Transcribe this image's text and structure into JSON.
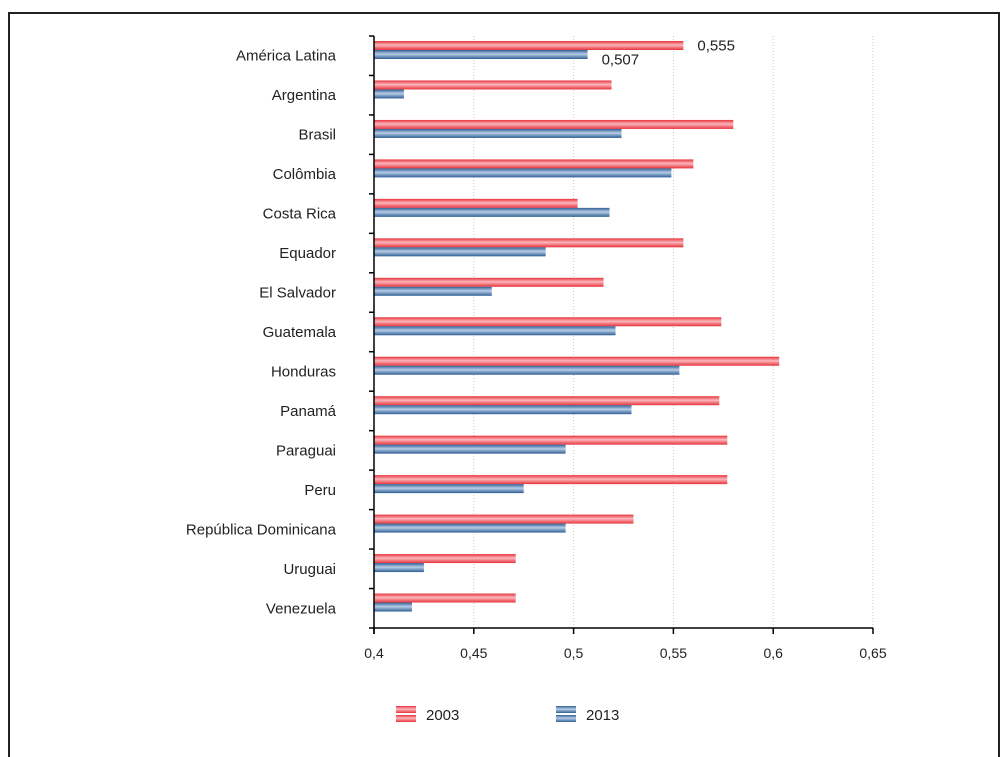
{
  "chart_data": {
    "type": "bar",
    "orientation": "horizontal",
    "categories": [
      "América Latina",
      "Argentina",
      "Brasil",
      "Colômbia",
      "Costa Rica",
      "Equador",
      "El Salvador",
      "Guatemala",
      "Honduras",
      "Panamá",
      "Paraguai",
      "Peru",
      "República Dominicana",
      "Uruguai",
      "Venezuela"
    ],
    "series": [
      {
        "name": "2003",
        "color": "#f2505a",
        "values": [
          0.555,
          0.519,
          0.58,
          0.56,
          0.502,
          0.555,
          0.515,
          0.574,
          0.603,
          0.573,
          0.577,
          0.577,
          0.53,
          0.471,
          0.471
        ]
      },
      {
        "name": "2013",
        "color": "#3f6fa3",
        "values": [
          0.507,
          0.415,
          0.524,
          0.549,
          0.518,
          0.486,
          0.459,
          0.521,
          0.553,
          0.529,
          0.496,
          0.475,
          0.496,
          0.425,
          0.419
        ]
      }
    ],
    "data_labels": [
      {
        "category": "América Latina",
        "series": "2003",
        "text": "0,555"
      },
      {
        "category": "América Latina",
        "series": "2013",
        "text": "0,507"
      }
    ],
    "xlim": [
      0.4,
      0.65
    ],
    "xticks": [
      0.4,
      0.45,
      0.5,
      0.55,
      0.6,
      0.65
    ],
    "xtick_labels": [
      "0,4",
      "0,45",
      "0,5",
      "0,55",
      "0,6",
      "0,65"
    ],
    "grid": "vertical-dotted",
    "legend_position": "bottom"
  }
}
